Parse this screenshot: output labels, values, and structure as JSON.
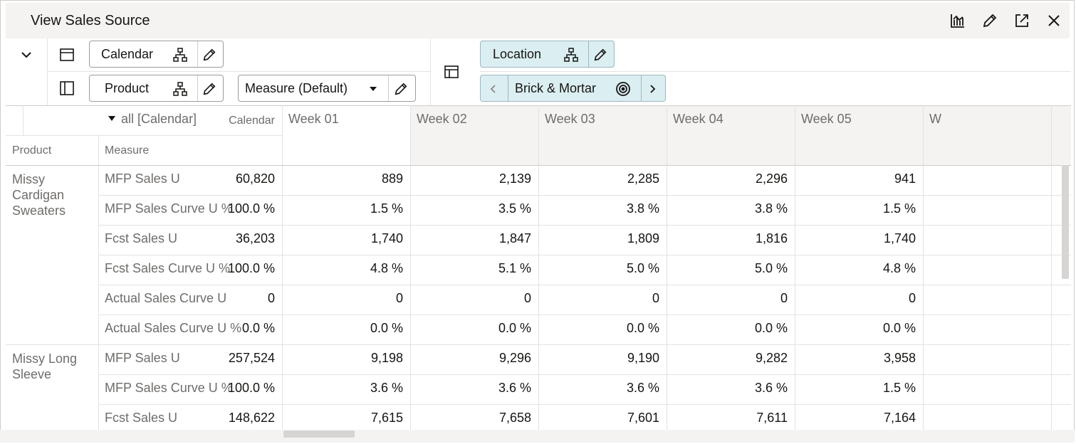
{
  "window": {
    "title": "View Sales Source"
  },
  "toolbar": {
    "rows_layer": {
      "label": "Calendar"
    },
    "cols_layer": {
      "label": "Product"
    },
    "measure": {
      "label": "Measure (Default)"
    },
    "location": {
      "label": "Location"
    },
    "location_value": {
      "label": "Brick & Mortar"
    }
  },
  "grid": {
    "calendar_header": "Calendar",
    "product_header": "Product",
    "measure_header": "Measure",
    "columns": [
      "all [Calendar]",
      "Week 01",
      "Week 02",
      "Week 03",
      "Week 04",
      "Week 05",
      "W"
    ],
    "groups": [
      {
        "product": "Missy Cardigan Sweaters",
        "rows": [
          {
            "measure": "MFP Sales U",
            "values": [
              "60,820",
              "889",
              "2,139",
              "2,285",
              "2,296",
              "941"
            ]
          },
          {
            "measure": "MFP Sales Curve U %",
            "values": [
              "100.0 %",
              "1.5 %",
              "3.5 %",
              "3.8 %",
              "3.8 %",
              "1.5 %"
            ]
          },
          {
            "measure": "Fcst Sales U",
            "values": [
              "36,203",
              "1,740",
              "1,847",
              "1,809",
              "1,816",
              "1,740"
            ]
          },
          {
            "measure": "Fcst Sales Curve U %",
            "values": [
              "100.0 %",
              "4.8 %",
              "5.1 %",
              "5.0 %",
              "5.0 %",
              "4.8 %"
            ]
          },
          {
            "measure": "Actual Sales Curve U",
            "values": [
              "0",
              "0",
              "0",
              "0",
              "0",
              "0"
            ]
          },
          {
            "measure": "Actual Sales Curve U %",
            "values": [
              "0.0 %",
              "0.0 %",
              "0.0 %",
              "0.0 %",
              "0.0 %",
              "0.0 %"
            ]
          }
        ]
      },
      {
        "product": "Missy Long Sleeve",
        "rows": [
          {
            "measure": "MFP Sales U",
            "values": [
              "257,524",
              "9,198",
              "9,296",
              "9,190",
              "9,282",
              "3,958"
            ]
          },
          {
            "measure": "MFP Sales Curve U %",
            "values": [
              "100.0 %",
              "3.6 %",
              "3.6 %",
              "3.6 %",
              "3.6 %",
              "1.5 %"
            ]
          },
          {
            "measure": "Fcst Sales U",
            "values": [
              "148,622",
              "7,615",
              "7,658",
              "7,601",
              "7,611",
              "7,164"
            ]
          }
        ]
      }
    ]
  },
  "icons": {
    "chart": "bar-chart-icon",
    "edit": "pencil-icon",
    "expand": "expand-icon",
    "close": "close-icon",
    "collapse": "chevron-down-icon",
    "hierarchy": "hierarchy-icon",
    "target": "target-icon"
  }
}
